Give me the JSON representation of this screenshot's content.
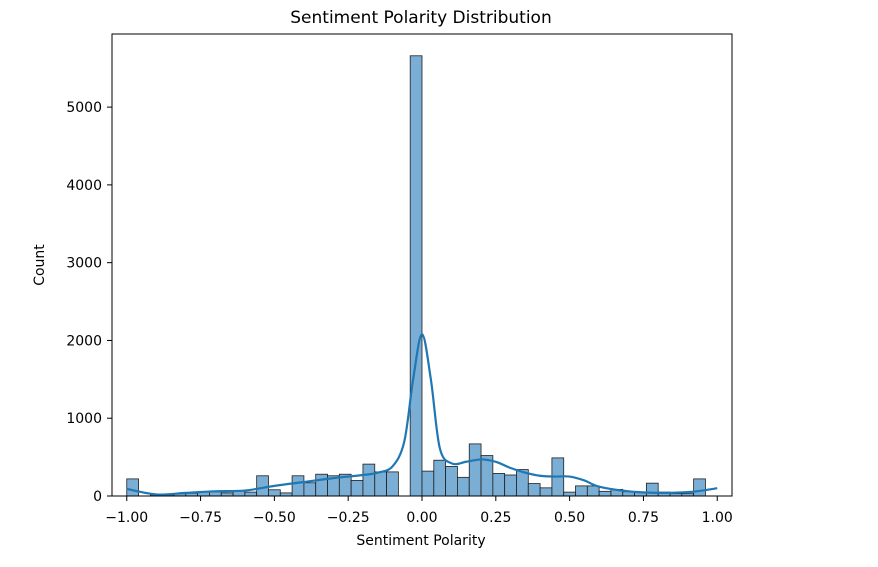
{
  "chart_data": {
    "type": "bar",
    "title": "Sentiment Polarity Distribution",
    "xlabel": "Sentiment Polarity",
    "ylabel": "Count",
    "xlim": [
      -1.05,
      1.05
    ],
    "ylim": [
      0,
      5940
    ],
    "xticks": [
      -1.0,
      -0.75,
      -0.5,
      -0.25,
      0.0,
      0.25,
      0.5,
      0.75,
      1.0
    ],
    "xtick_labels": [
      "−1.00",
      "−0.75",
      "−0.50",
      "−0.25",
      "0.00",
      "0.25",
      "0.50",
      "0.75",
      "1.00"
    ],
    "yticks": [
      0,
      1000,
      2000,
      3000,
      4000,
      5000
    ],
    "ytick_labels": [
      "0",
      "1000",
      "2000",
      "3000",
      "4000",
      "5000"
    ],
    "bin_width": 0.04,
    "bins_start": [
      -1.0,
      -0.96,
      -0.92,
      -0.88,
      -0.84,
      -0.8,
      -0.76,
      -0.72,
      -0.68,
      -0.64,
      -0.6,
      -0.56,
      -0.52,
      -0.48,
      -0.44,
      -0.4,
      -0.36,
      -0.32,
      -0.28,
      -0.24,
      -0.2,
      -0.16,
      -0.12,
      -0.08,
      -0.04,
      0.0,
      0.04,
      0.08,
      0.12,
      0.16,
      0.2,
      0.24,
      0.28,
      0.32,
      0.36,
      0.4,
      0.44,
      0.48,
      0.52,
      0.56,
      0.6,
      0.64,
      0.68,
      0.72,
      0.76,
      0.8,
      0.84,
      0.88,
      0.92,
      0.96
    ],
    "counts": [
      220,
      0,
      15,
      15,
      30,
      35,
      55,
      55,
      40,
      70,
      50,
      260,
      80,
      40,
      260,
      170,
      280,
      260,
      280,
      200,
      410,
      310,
      310,
      0,
      5660,
      320,
      460,
      380,
      240,
      670,
      520,
      290,
      270,
      340,
      160,
      105,
      490,
      50,
      130,
      130,
      60,
      85,
      55,
      50,
      165,
      50,
      30,
      30,
      220,
      0
    ],
    "kde": {
      "x": [
        -1.0,
        -0.9,
        -0.8,
        -0.7,
        -0.6,
        -0.5,
        -0.4,
        -0.3,
        -0.2,
        -0.15,
        -0.1,
        -0.06,
        -0.03,
        0.0,
        0.03,
        0.06,
        0.1,
        0.15,
        0.2,
        0.25,
        0.3,
        0.35,
        0.4,
        0.45,
        0.5,
        0.55,
        0.6,
        0.7,
        0.8,
        0.9,
        0.95,
        1.0
      ],
      "y": [
        90,
        20,
        40,
        60,
        70,
        130,
        180,
        230,
        270,
        300,
        380,
        700,
        1500,
        2080,
        1500,
        620,
        420,
        440,
        470,
        440,
        360,
        300,
        260,
        250,
        250,
        200,
        120,
        60,
        40,
        50,
        70,
        100
      ]
    },
    "bar_fill": "#7aaed5",
    "bar_edge": "#1f1f1f",
    "line_color": "#1f77b4",
    "grid": false,
    "legend": "none"
  }
}
